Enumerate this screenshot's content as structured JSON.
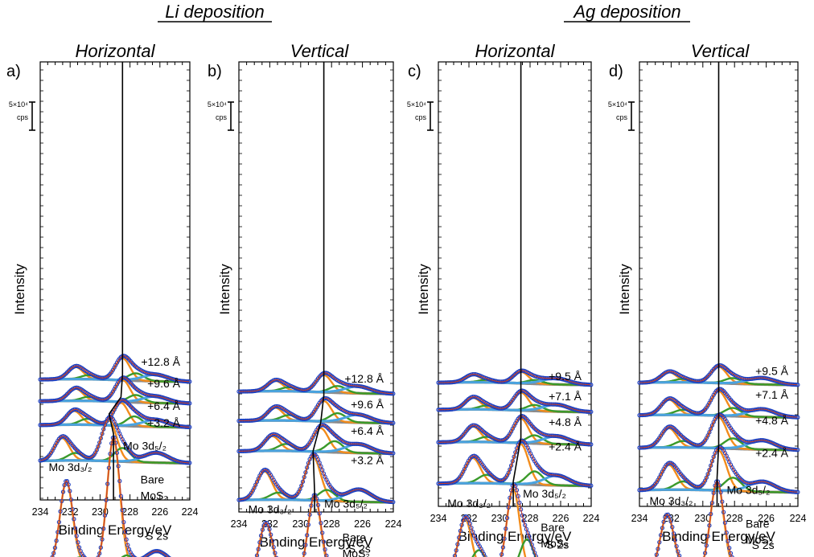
{
  "figure": {
    "section_titles": [
      "Li deposition",
      "Ag deposition"
    ],
    "colors": {
      "data": "#1f3fbf",
      "envelope": "#c0392b",
      "mo_a": "#f28c1c",
      "mo_b": "#3a9a2a",
      "s2s": "#4aa3df",
      "background": "#8c8c8c",
      "frame": "#000000"
    }
  },
  "chart_data": [
    {
      "type": "line",
      "panel_label": "a)",
      "title": "Horizontal",
      "ylabel": "Intensity",
      "xlabel": "Binding Energy/eV",
      "xlim": [
        234,
        224
      ],
      "xticks": [
        234,
        232,
        230,
        228,
        226,
        224
      ],
      "scale_bar": [
        "5×10⁴",
        "cps"
      ],
      "spectra": [
        {
          "label": "+12.8 Å",
          "base": 10.0,
          "amp": 2.7,
          "shift": -0.6,
          "ratio": 0.55,
          "splitA": 0.75,
          "s2s": 0.15
        },
        {
          "label": "+9.6 Å",
          "base": 8.0,
          "amp": 2.7,
          "shift": -0.6,
          "ratio": 0.55,
          "splitA": 0.75,
          "s2s": 0.15
        },
        {
          "label": "+6.4 Å",
          "base": 5.8,
          "amp": 3.0,
          "shift": -0.5,
          "ratio": 0.6,
          "splitA": 0.7,
          "s2s": 0.15
        },
        {
          "label": "+3.2 Å",
          "base": 2.5,
          "amp": 5.0,
          "shift": 0.3,
          "ratio": 0.55,
          "splitA": 0.75,
          "s2s": 0.15
        },
        {
          "label": "Bare MoS₂",
          "base": -7.0,
          "amp": 12.5,
          "shift": 0.0,
          "ratio": 0.65,
          "splitA": 0.93,
          "s2s": 0.12
        }
      ],
      "peak_labels": {
        "d52": "Mo 3d₅/₂",
        "d32": "Mo 3d₃/₂",
        "bare": [
          "Bare",
          "MoS₂"
        ],
        "s2s": "S 2s"
      }
    },
    {
      "type": "line",
      "panel_label": "b)",
      "title": "Vertical",
      "ylabel": "Intensity",
      "xlabel": "Binding Energy/eV",
      "xlim": [
        234,
        224
      ],
      "xticks": [
        234,
        232,
        230,
        228,
        226,
        224
      ],
      "scale_bar": [
        "5×10⁴",
        "cps"
      ],
      "spectra": [
        {
          "label": "+12.8 Å",
          "base": 10.0,
          "amp": 2.2,
          "shift": -0.6,
          "ratio": 0.6,
          "splitA": 0.72,
          "s2s": 0.2
        },
        {
          "label": "+9.6 Å",
          "base": 7.3,
          "amp": 2.7,
          "shift": -0.6,
          "ratio": 0.62,
          "splitA": 0.7,
          "s2s": 0.2
        },
        {
          "label": "+6.4 Å",
          "base": 4.5,
          "amp": 3.2,
          "shift": -0.4,
          "ratio": 0.62,
          "splitA": 0.68,
          "s2s": 0.2
        },
        {
          "label": "+3.2 Å",
          "base": 0.0,
          "amp": 5.0,
          "shift": 0.1,
          "ratio": 0.65,
          "splitA": 0.8,
          "s2s": 0.2
        },
        {
          "label": "Bare MoS₂",
          "base": -7.0,
          "amp": 8.0,
          "shift": 0.0,
          "ratio": 0.65,
          "splitA": 0.93,
          "s2s": 0.18
        }
      ],
      "peak_labels": {
        "d52": "Mo 3d₅/₂",
        "d32": "Mo 3d₃/₂",
        "bare": [
          "Bare",
          "MoS₂"
        ],
        "s2s": "S 2s"
      }
    },
    {
      "type": "line",
      "panel_label": "c)",
      "title": "Horizontal",
      "ylabel": "Intensity",
      "xlabel": "Binding Energy/eV",
      "xlim": [
        234,
        224
      ],
      "xticks": [
        234,
        232,
        230,
        228,
        226,
        224
      ],
      "scale_bar": [
        "5×10⁴",
        "cps"
      ],
      "spectra": [
        {
          "label": "+9.5 Å",
          "base": 10.3,
          "amp": 1.4,
          "shift": -0.5,
          "ratio": 0.65,
          "splitA": 0.75,
          "s2s": 0.25
        },
        {
          "label": "+7.1 Å",
          "base": 7.8,
          "amp": 2.2,
          "shift": -0.5,
          "ratio": 0.65,
          "splitA": 0.75,
          "s2s": 0.2
        },
        {
          "label": "+4.8 Å",
          "base": 4.8,
          "amp": 3.0,
          "shift": -0.5,
          "ratio": 0.63,
          "splitA": 0.75,
          "s2s": 0.18
        },
        {
          "label": "+2.4 Å",
          "base": 1.0,
          "amp": 4.9,
          "shift": -0.5,
          "ratio": 0.63,
          "splitA": 0.75,
          "s2s": 0.15
        },
        {
          "label": "Bare MoS₂",
          "base": -7.0,
          "amp": 10.5,
          "shift": 0.0,
          "ratio": 0.62,
          "splitA": 0.72,
          "s2s": 0.12
        }
      ],
      "peak_labels": {
        "d52": "Mo 3d₅/₂",
        "d32": "Mo 3d₃/₂",
        "bare": [
          "Bare",
          "MoS₂"
        ],
        "s2s": "S 2s"
      }
    },
    {
      "type": "line",
      "panel_label": "d)",
      "title": "Vertical",
      "ylabel": "Intensity",
      "xlabel": "Binding Energy/eV",
      "xlim": [
        234,
        224
      ],
      "xticks": [
        234,
        232,
        230,
        228,
        226,
        224
      ],
      "scale_bar": [
        "5×10⁴",
        "cps"
      ],
      "spectra": [
        {
          "label": "+9.5 Å",
          "base": 10.3,
          "amp": 2.0,
          "shift": -0.1,
          "ratio": 0.62,
          "splitA": 0.75,
          "s2s": 0.2
        },
        {
          "label": "+7.1 Å",
          "base": 7.3,
          "amp": 3.0,
          "shift": -0.1,
          "ratio": 0.62,
          "splitA": 0.75,
          "s2s": 0.18
        },
        {
          "label": "+4.8 Å",
          "base": 4.3,
          "amp": 3.8,
          "shift": -0.1,
          "ratio": 0.62,
          "splitA": 0.75,
          "s2s": 0.18
        },
        {
          "label": "+2.4 Å",
          "base": 0.4,
          "amp": 4.9,
          "shift": -0.1,
          "ratio": 0.62,
          "splitA": 0.75,
          "s2s": 0.16
        },
        {
          "label": "Bare MoS₂",
          "base": -7.0,
          "amp": 8.8,
          "shift": 0.0,
          "ratio": 0.62,
          "splitA": 0.93,
          "s2s": 0.14
        }
      ],
      "peak_labels": {
        "d52": "Mo 3d₅/₂",
        "d32": "Mo 3d₃/₂",
        "bare": [
          "Bare",
          "MoS₂"
        ],
        "s2s": "S 2s"
      }
    }
  ]
}
